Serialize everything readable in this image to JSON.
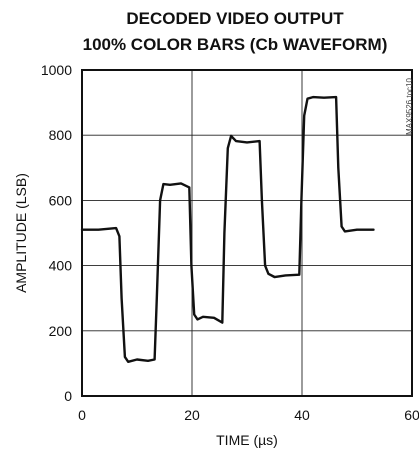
{
  "chart_data": {
    "type": "line",
    "title": "DECODED VIDEO OUTPUT",
    "subtitle": "100% COLOR BARS (Cb WAVEFORM)",
    "xlabel": "TIME (µs)",
    "ylabel": "AMPLITUDE (LSB)",
    "xlim": [
      0,
      60
    ],
    "ylim": [
      0,
      1000
    ],
    "xticks": [
      "0",
      "20",
      "40",
      "60"
    ],
    "yticks": [
      "0",
      "200",
      "400",
      "600",
      "800",
      "1000"
    ],
    "grid": true,
    "watermark": "MAX9526 toc10",
    "series": [
      {
        "x": [
          0,
          3,
          6.2,
          6.8,
          7.2,
          7.8,
          8.4,
          10,
          12,
          13.2,
          13.6,
          14.2,
          14.8,
          16,
          18,
          19.5,
          19.9,
          20.4,
          21,
          22,
          24,
          25.5,
          25.9,
          26.5,
          27.1,
          28,
          30,
          32.3,
          32.7,
          33.3,
          33.9,
          35,
          37,
          39.5,
          39.9,
          40.4,
          41,
          42,
          44,
          46.2,
          46.6,
          47.2,
          47.8,
          50,
          53
        ],
        "y": [
          510,
          510,
          515,
          490,
          300,
          120,
          105,
          112,
          108,
          112,
          300,
          600,
          650,
          648,
          652,
          640,
          400,
          250,
          235,
          243,
          240,
          225,
          500,
          760,
          798,
          782,
          778,
          782,
          600,
          400,
          375,
          365,
          370,
          372,
          600,
          860,
          912,
          917,
          915,
          917,
          700,
          520,
          505,
          510,
          510
        ]
      }
    ]
  }
}
